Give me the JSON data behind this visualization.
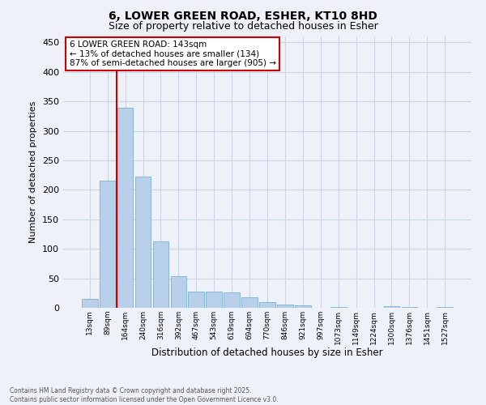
{
  "title_line1": "6, LOWER GREEN ROAD, ESHER, KT10 8HD",
  "title_line2": "Size of property relative to detached houses in Esher",
  "xlabel": "Distribution of detached houses by size in Esher",
  "ylabel": "Number of detached properties",
  "categories": [
    "13sqm",
    "89sqm",
    "164sqm",
    "240sqm",
    "316sqm",
    "392sqm",
    "467sqm",
    "543sqm",
    "619sqm",
    "694sqm",
    "770sqm",
    "846sqm",
    "921sqm",
    "997sqm",
    "1073sqm",
    "1149sqm",
    "1224sqm",
    "1300sqm",
    "1376sqm",
    "1451sqm",
    "1527sqm"
  ],
  "values": [
    15,
    216,
    339,
    222,
    113,
    53,
    28,
    27,
    26,
    18,
    9,
    6,
    4,
    0,
    1,
    0,
    0,
    3,
    1,
    0,
    2
  ],
  "bar_color": "#b8d0ea",
  "bar_edge_color": "#7aafd4",
  "annotation_text_line1": "6 LOWER GREEN ROAD: 143sqm",
  "annotation_text_line2": "← 13% of detached houses are smaller (134)",
  "annotation_text_line3": "87% of semi-detached houses are larger (905) →",
  "annotation_box_facecolor": "#ffffff",
  "annotation_box_edgecolor": "#cc0000",
  "vline_color": "#cc0000",
  "vline_x": 1.5,
  "footnote_line1": "Contains HM Land Registry data © Crown copyright and database right 2025.",
  "footnote_line2": "Contains public sector information licensed under the Open Government Licence v3.0.",
  "ylim_max": 460,
  "yticks": [
    0,
    50,
    100,
    150,
    200,
    250,
    300,
    350,
    400,
    450
  ],
  "grid_color": "#c8d4e8",
  "bg_color": "#eef2f8"
}
